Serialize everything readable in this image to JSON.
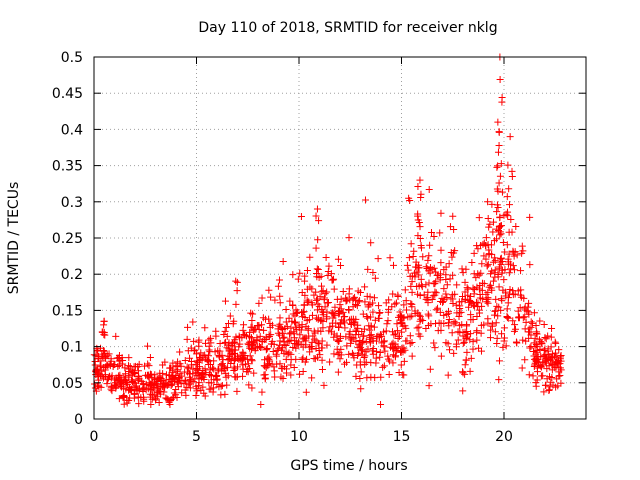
{
  "chart_data": {
    "type": "scatter",
    "title": "Day 110 of 2018, SRMTID for receiver nklg",
    "xlabel": "GPS time / hours",
    "ylabel": "SRMTID / TECUs",
    "xlim": [
      0,
      24
    ],
    "ylim": [
      0,
      0.5
    ],
    "grid": true,
    "marker": "+",
    "color": "#ff0000",
    "x_ticks": [
      0,
      5,
      10,
      15,
      20
    ],
    "x_tick_labels": [
      "0",
      "5",
      "10",
      "15",
      "20"
    ],
    "y_ticks": [
      0,
      0.05,
      0.1,
      0.15,
      0.2,
      0.25,
      0.3,
      0.35,
      0.4,
      0.45,
      0.5
    ],
    "y_tick_labels": [
      "0",
      "0.05",
      "0.1",
      "0.15",
      "0.2",
      "0.25",
      "0.3",
      "0.35",
      "0.4",
      "0.45",
      "0.5"
    ],
    "x_range_of_data": [
      0,
      22.8
    ],
    "trend_profile": {
      "description": "approximate central level of SRMTID vs time (hours)",
      "x": [
        0,
        0.5,
        1,
        2,
        3,
        4,
        5,
        6,
        7,
        8,
        9,
        10,
        11,
        12,
        13,
        14,
        15,
        15.5,
        16,
        16.5,
        17,
        18,
        19,
        19.8,
        20.5,
        21,
        21.5,
        22,
        22.8
      ],
      "y": [
        0.07,
        0.075,
        0.06,
        0.05,
        0.045,
        0.055,
        0.07,
        0.08,
        0.09,
        0.1,
        0.1,
        0.12,
        0.14,
        0.13,
        0.13,
        0.12,
        0.12,
        0.17,
        0.19,
        0.17,
        0.15,
        0.14,
        0.17,
        0.21,
        0.2,
        0.15,
        0.09,
        0.08,
        0.07
      ]
    },
    "notable_peaks": [
      {
        "x": 0.5,
        "y": 0.135
      },
      {
        "x": 10.9,
        "y": 0.29
      },
      {
        "x": 15.9,
        "y": 0.33
      },
      {
        "x": 17.5,
        "y": 0.28
      },
      {
        "x": 19.2,
        "y": 0.3
      },
      {
        "x": 19.7,
        "y": 0.41
      },
      {
        "x": 19.8,
        "y": 0.5
      },
      {
        "x": 20.3,
        "y": 0.39
      }
    ]
  }
}
